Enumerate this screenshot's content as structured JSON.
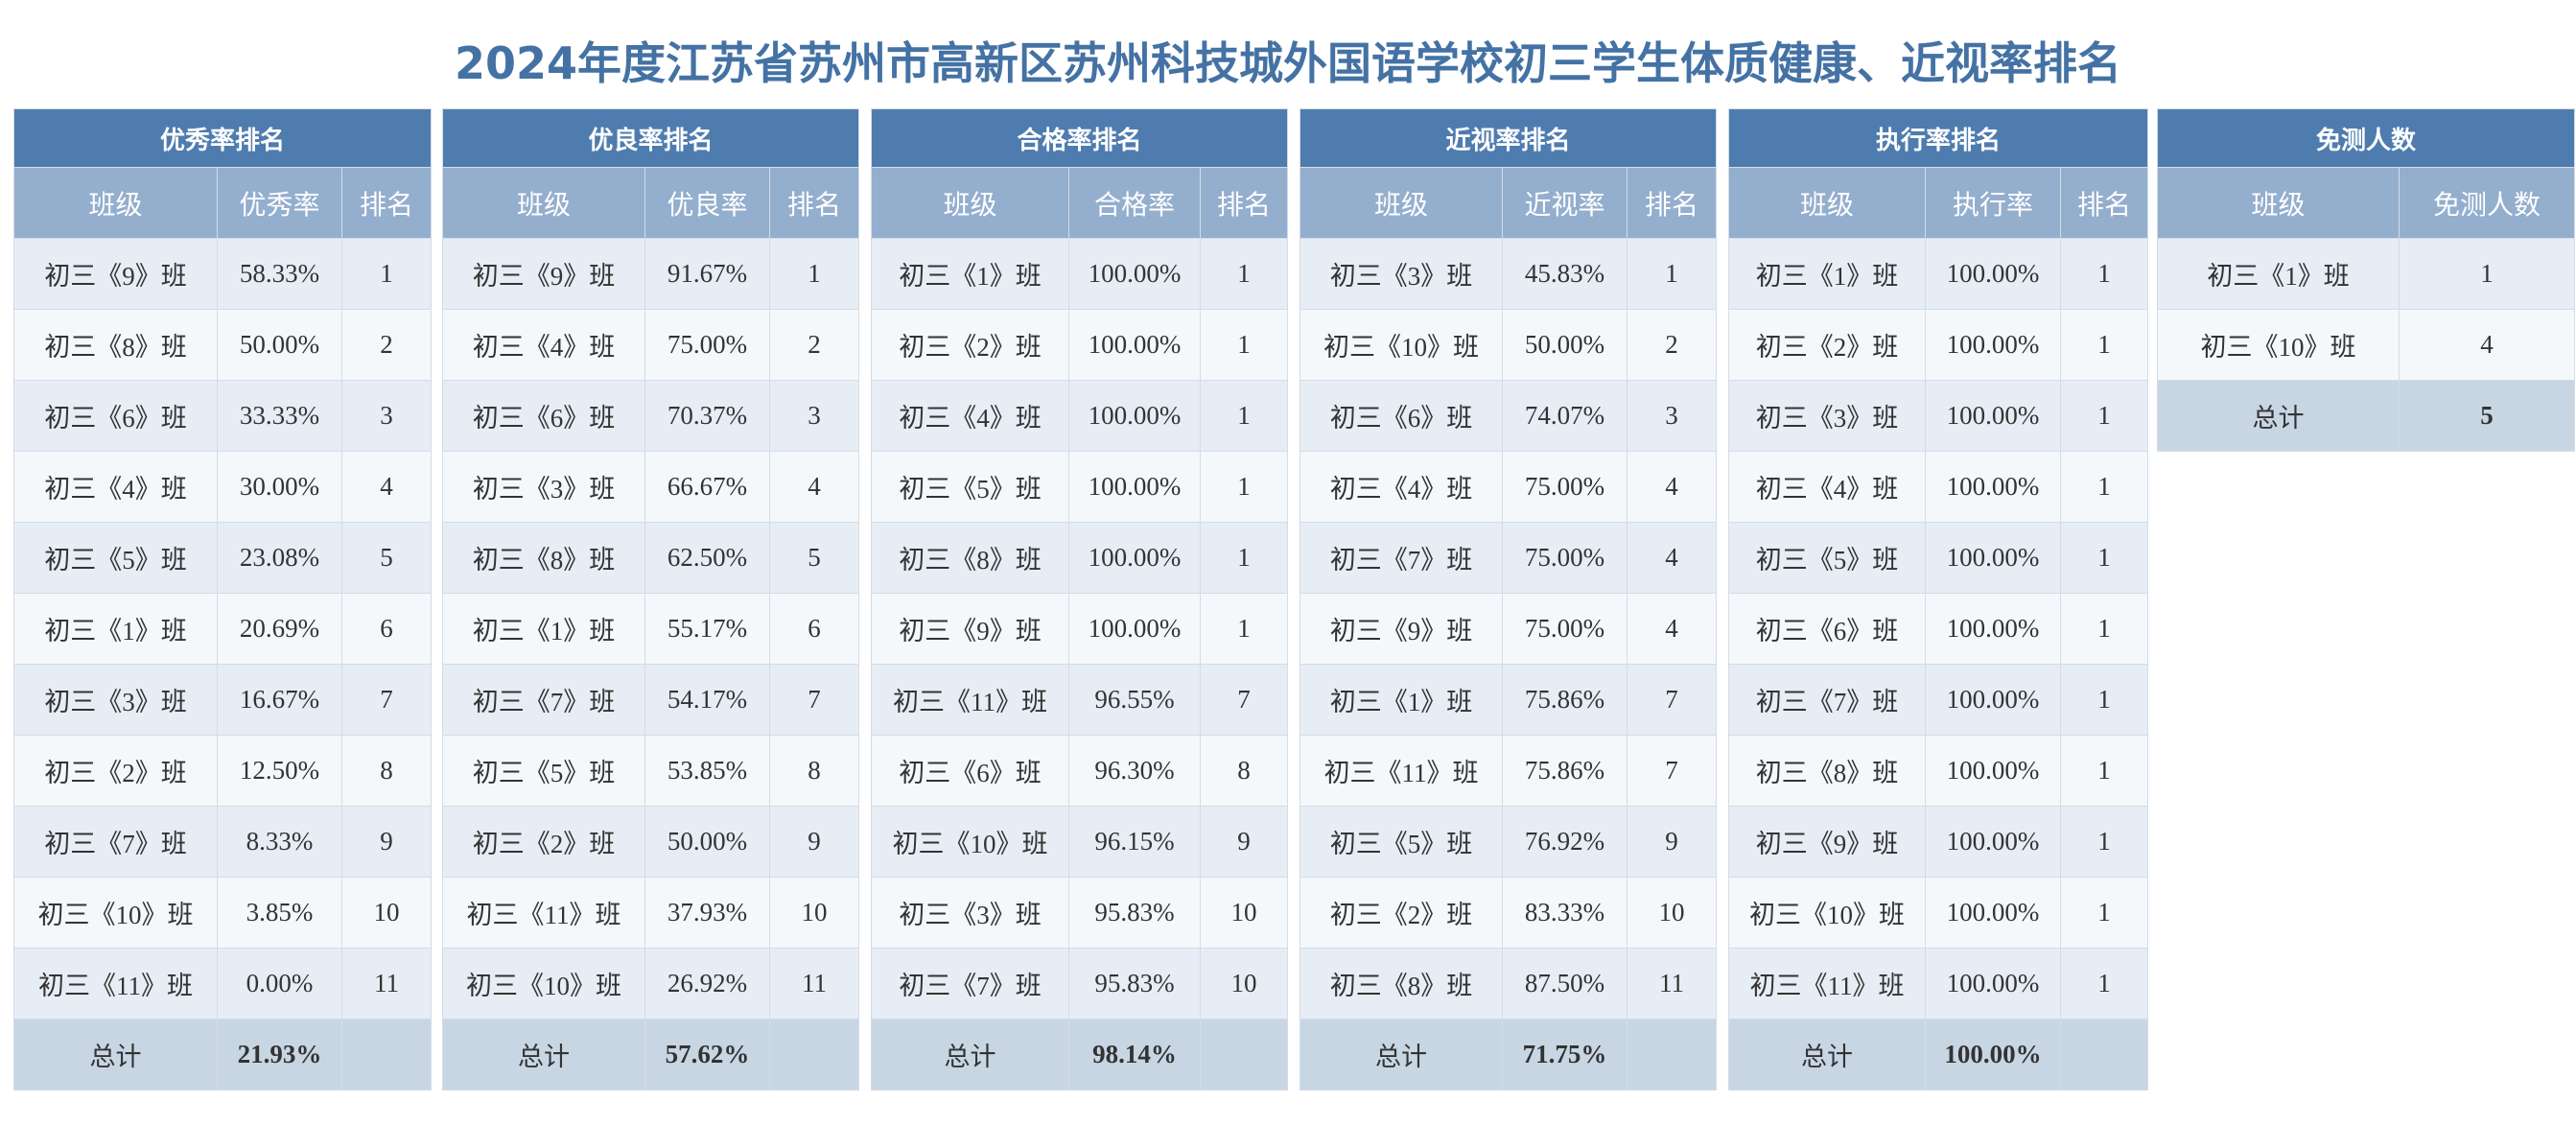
{
  "title": "2024年度江苏省苏州市高新区苏州科技城外国语学校初三学生体质健康、近视率排名",
  "tables": [
    {
      "title": "优秀率排名",
      "headers": [
        "班级",
        "优秀率",
        "排名"
      ],
      "rows": [
        [
          "初三《9》班",
          "58.33%",
          "1"
        ],
        [
          "初三《8》班",
          "50.00%",
          "2"
        ],
        [
          "初三《6》班",
          "33.33%",
          "3"
        ],
        [
          "初三《4》班",
          "30.00%",
          "4"
        ],
        [
          "初三《5》班",
          "23.08%",
          "5"
        ],
        [
          "初三《1》班",
          "20.69%",
          "6"
        ],
        [
          "初三《3》班",
          "16.67%",
          "7"
        ],
        [
          "初三《2》班",
          "12.50%",
          "8"
        ],
        [
          "初三《7》班",
          "8.33%",
          "9"
        ],
        [
          "初三《10》班",
          "3.85%",
          "10"
        ],
        [
          "初三《11》班",
          "0.00%",
          "11"
        ]
      ],
      "total": [
        "总计",
        "21.93%",
        ""
      ]
    },
    {
      "title": "优良率排名",
      "headers": [
        "班级",
        "优良率",
        "排名"
      ],
      "rows": [
        [
          "初三《9》班",
          "91.67%",
          "1"
        ],
        [
          "初三《4》班",
          "75.00%",
          "2"
        ],
        [
          "初三《6》班",
          "70.37%",
          "3"
        ],
        [
          "初三《3》班",
          "66.67%",
          "4"
        ],
        [
          "初三《8》班",
          "62.50%",
          "5"
        ],
        [
          "初三《1》班",
          "55.17%",
          "6"
        ],
        [
          "初三《7》班",
          "54.17%",
          "7"
        ],
        [
          "初三《5》班",
          "53.85%",
          "8"
        ],
        [
          "初三《2》班",
          "50.00%",
          "9"
        ],
        [
          "初三《11》班",
          "37.93%",
          "10"
        ],
        [
          "初三《10》班",
          "26.92%",
          "11"
        ]
      ],
      "total": [
        "总计",
        "57.62%",
        ""
      ]
    },
    {
      "title": "合格率排名",
      "headers": [
        "班级",
        "合格率",
        "排名"
      ],
      "rows": [
        [
          "初三《1》班",
          "100.00%",
          "1"
        ],
        [
          "初三《2》班",
          "100.00%",
          "1"
        ],
        [
          "初三《4》班",
          "100.00%",
          "1"
        ],
        [
          "初三《5》班",
          "100.00%",
          "1"
        ],
        [
          "初三《8》班",
          "100.00%",
          "1"
        ],
        [
          "初三《9》班",
          "100.00%",
          "1"
        ],
        [
          "初三《11》班",
          "96.55%",
          "7"
        ],
        [
          "初三《6》班",
          "96.30%",
          "8"
        ],
        [
          "初三《10》班",
          "96.15%",
          "9"
        ],
        [
          "初三《3》班",
          "95.83%",
          "10"
        ],
        [
          "初三《7》班",
          "95.83%",
          "10"
        ]
      ],
      "total": [
        "总计",
        "98.14%",
        ""
      ]
    },
    {
      "title": "近视率排名",
      "headers": [
        "班级",
        "近视率",
        "排名"
      ],
      "rows": [
        [
          "初三《3》班",
          "45.83%",
          "1"
        ],
        [
          "初三《10》班",
          "50.00%",
          "2"
        ],
        [
          "初三《6》班",
          "74.07%",
          "3"
        ],
        [
          "初三《4》班",
          "75.00%",
          "4"
        ],
        [
          "初三《7》班",
          "75.00%",
          "4"
        ],
        [
          "初三《9》班",
          "75.00%",
          "4"
        ],
        [
          "初三《1》班",
          "75.86%",
          "7"
        ],
        [
          "初三《11》班",
          "75.86%",
          "7"
        ],
        [
          "初三《5》班",
          "76.92%",
          "9"
        ],
        [
          "初三《2》班",
          "83.33%",
          "10"
        ],
        [
          "初三《8》班",
          "87.50%",
          "11"
        ]
      ],
      "total": [
        "总计",
        "71.75%",
        ""
      ]
    },
    {
      "title": "执行率排名",
      "headers": [
        "班级",
        "执行率",
        "排名"
      ],
      "rows": [
        [
          "初三《1》班",
          "100.00%",
          "1"
        ],
        [
          "初三《2》班",
          "100.00%",
          "1"
        ],
        [
          "初三《3》班",
          "100.00%",
          "1"
        ],
        [
          "初三《4》班",
          "100.00%",
          "1"
        ],
        [
          "初三《5》班",
          "100.00%",
          "1"
        ],
        [
          "初三《6》班",
          "100.00%",
          "1"
        ],
        [
          "初三《7》班",
          "100.00%",
          "1"
        ],
        [
          "初三《8》班",
          "100.00%",
          "1"
        ],
        [
          "初三《9》班",
          "100.00%",
          "1"
        ],
        [
          "初三《10》班",
          "100.00%",
          "1"
        ],
        [
          "初三《11》班",
          "100.00%",
          "1"
        ]
      ],
      "total": [
        "总计",
        "100.00%",
        ""
      ]
    },
    {
      "title": "免测人数",
      "headers": [
        "班级",
        "免测人数"
      ],
      "rows": [
        [
          "初三《1》班",
          "1"
        ],
        [
          "初三《10》班",
          "4"
        ]
      ],
      "total": [
        "总计",
        "5"
      ]
    }
  ]
}
